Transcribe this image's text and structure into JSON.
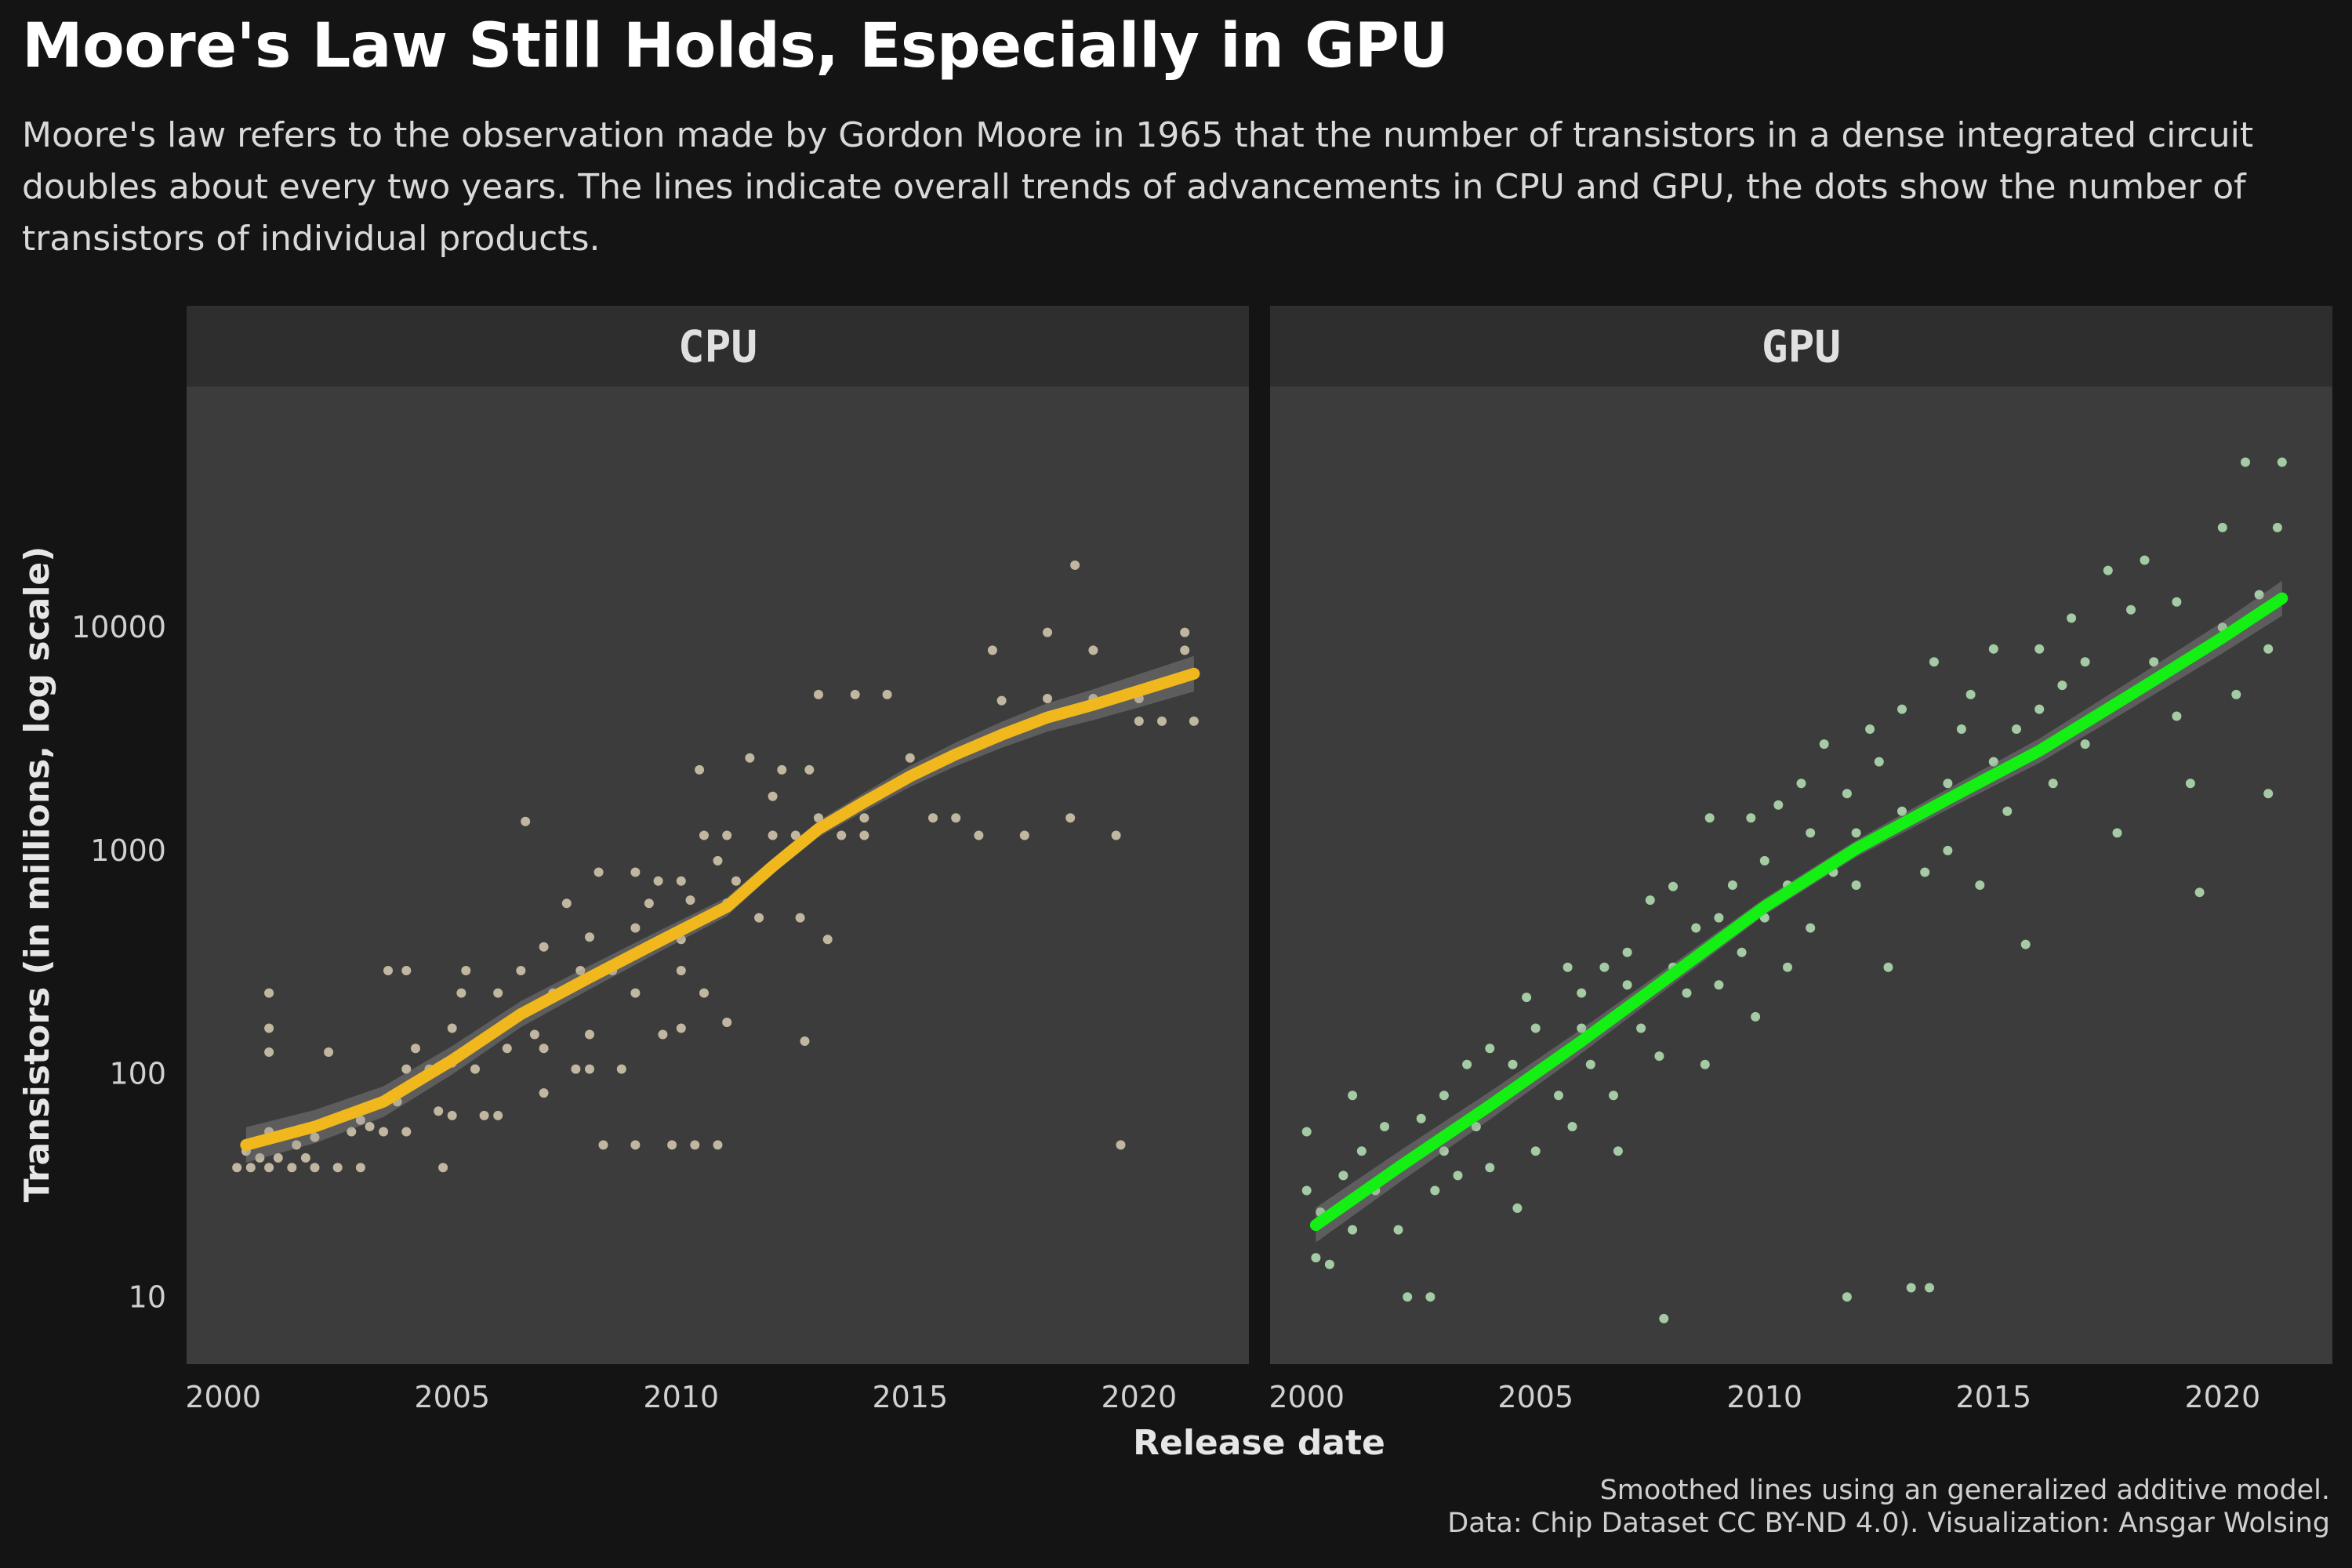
{
  "title": "Moore's Law Still Holds, Especially in GPU",
  "subtitle": "Moore's law refers to the observation made by Gordon Moore in 1965 that the number of transistors in a dense integrated circuit doubles about every two years. The lines indicate overall trends of advancements in CPU and GPU, the dots show the number of transistors of individual products.",
  "caption": {
    "line1": "Smoothed lines using an generalized additive model.",
    "line2": "Data: Chip Dataset CC BY-ND 4.0). Visualization: Ansgar Wolsing"
  },
  "colors": {
    "background": "#141414",
    "panel": "#3c3c3c",
    "strip": "#2e2e2e",
    "cpu_line": "#f0b81c",
    "cpu_points": "#d8cbb0",
    "gpu_line": "#14f014",
    "gpu_points": "#b6e4b6",
    "ribbon": "#9a9a9a"
  },
  "chart_data": {
    "type": "scatter",
    "xlabel": "Release date",
    "ylabel": "Transistors (in millions, log scale)",
    "y_scale": "log",
    "ylim": [
      5,
      120000
    ],
    "xlim": [
      1999.2,
      2022.4
    ],
    "x_ticks": [
      "2000",
      "2005",
      "2010",
      "2015",
      "2020"
    ],
    "y_ticks": [
      "10",
      "100",
      "1000",
      "10000"
    ],
    "grid": false,
    "panels": [
      {
        "name": "CPU",
        "trend": {
          "x": [
            2000.5,
            2002,
            2003.5,
            2005,
            2006.5,
            2008,
            2009.5,
            2011,
            2012,
            2013,
            2014,
            2015,
            2016,
            2017,
            2018,
            2019,
            2020,
            2021.2
          ],
          "y": [
            48,
            58,
            75,
            115,
            185,
            270,
            390,
            560,
            850,
            1250,
            1650,
            2150,
            2700,
            3300,
            3950,
            4500,
            5200,
            6200
          ]
        },
        "points": [
          [
            2000.3,
            38
          ],
          [
            2000.5,
            45
          ],
          [
            2000.6,
            38
          ],
          [
            2000.8,
            42
          ],
          [
            2001,
            55
          ],
          [
            2001,
            38
          ],
          [
            2001,
            230
          ],
          [
            2001,
            160
          ],
          [
            2001,
            125
          ],
          [
            2001.2,
            42
          ],
          [
            2001.5,
            38
          ],
          [
            2001.6,
            48
          ],
          [
            2001.8,
            42
          ],
          [
            2002,
            38
          ],
          [
            2002,
            52
          ],
          [
            2002.3,
            125
          ],
          [
            2002.5,
            38
          ],
          [
            2002.8,
            55
          ],
          [
            2003,
            62
          ],
          [
            2003,
            38
          ],
          [
            2003.2,
            58
          ],
          [
            2003.5,
            55
          ],
          [
            2003.6,
            290
          ],
          [
            2003.8,
            75
          ],
          [
            2004,
            105
          ],
          [
            2004,
            290
          ],
          [
            2004,
            55
          ],
          [
            2004.2,
            130
          ],
          [
            2004.5,
            105
          ],
          [
            2004.7,
            68
          ],
          [
            2004.8,
            38
          ],
          [
            2005,
            160
          ],
          [
            2005,
            112
          ],
          [
            2005,
            65
          ],
          [
            2005.2,
            230
          ],
          [
            2005.3,
            290
          ],
          [
            2005.5,
            105
          ],
          [
            2005.7,
            65
          ],
          [
            2005.8,
            150
          ],
          [
            2006,
            230
          ],
          [
            2006,
            65
          ],
          [
            2006.2,
            130
          ],
          [
            2006.5,
            290
          ],
          [
            2006.6,
            1350
          ],
          [
            2006.8,
            150
          ],
          [
            2007,
            370
          ],
          [
            2007,
            130
          ],
          [
            2007,
            82
          ],
          [
            2007.2,
            230
          ],
          [
            2007.5,
            580
          ],
          [
            2007.7,
            105
          ],
          [
            2007.8,
            290
          ],
          [
            2008,
            410
          ],
          [
            2008,
            150
          ],
          [
            2008,
            105
          ],
          [
            2008.2,
            800
          ],
          [
            2008.3,
            48
          ],
          [
            2008.5,
            290
          ],
          [
            2008.7,
            105
          ],
          [
            2009,
            800
          ],
          [
            2009,
            450
          ],
          [
            2009,
            230
          ],
          [
            2009,
            48
          ],
          [
            2009.3,
            580
          ],
          [
            2009.5,
            730
          ],
          [
            2009.6,
            150
          ],
          [
            2009.8,
            48
          ],
          [
            2010,
            730
          ],
          [
            2010,
            400
          ],
          [
            2010,
            290
          ],
          [
            2010,
            160
          ],
          [
            2010.2,
            600
          ],
          [
            2010.3,
            48
          ],
          [
            2010.4,
            2300
          ],
          [
            2010.5,
            1170
          ],
          [
            2010.5,
            230
          ],
          [
            2010.8,
            900
          ],
          [
            2010.8,
            48
          ],
          [
            2011,
            1170
          ],
          [
            2011,
            580
          ],
          [
            2011,
            170
          ],
          [
            2011.2,
            730
          ],
          [
            2011.5,
            2600
          ],
          [
            2011.7,
            500
          ],
          [
            2012,
            1170
          ],
          [
            2012,
            1750
          ],
          [
            2012.2,
            2300
          ],
          [
            2012.5,
            1170
          ],
          [
            2012.6,
            500
          ],
          [
            2012.7,
            140
          ],
          [
            2012.8,
            2300
          ],
          [
            2013,
            1400
          ],
          [
            2013,
            5000
          ],
          [
            2013.2,
            400
          ],
          [
            2013.5,
            1170
          ],
          [
            2013.8,
            5000
          ],
          [
            2014,
            1400
          ],
          [
            2014,
            1170
          ],
          [
            2014.5,
            5000
          ],
          [
            2015,
            2600
          ],
          [
            2015.5,
            1400
          ],
          [
            2016,
            1400
          ],
          [
            2016.5,
            1170
          ],
          [
            2016.8,
            7900
          ],
          [
            2017,
            4700
          ],
          [
            2017.5,
            1170
          ],
          [
            2018,
            9500
          ],
          [
            2018,
            4800
          ],
          [
            2018.5,
            1400
          ],
          [
            2018.6,
            19000
          ],
          [
            2019,
            7900
          ],
          [
            2019,
            4800
          ],
          [
            2019.5,
            1170
          ],
          [
            2019.6,
            48
          ],
          [
            2020,
            4800
          ],
          [
            2020,
            3800
          ],
          [
            2020.5,
            3800
          ],
          [
            2021,
            9500
          ],
          [
            2021,
            7900
          ],
          [
            2021.2,
            3800
          ]
        ]
      },
      {
        "name": "GPU",
        "trend": {
          "x": [
            2000.2,
            2002,
            2004,
            2006,
            2008,
            2010,
            2012,
            2014,
            2016,
            2018,
            2020,
            2021.3
          ],
          "y": [
            21,
            38,
            72,
            140,
            280,
            560,
            1020,
            1700,
            2800,
            5000,
            9000,
            13500
          ]
        },
        "points": [
          [
            2000,
            55
          ],
          [
            2000,
            30
          ],
          [
            2000.2,
            15
          ],
          [
            2000.3,
            24
          ],
          [
            2000.5,
            14
          ],
          [
            2000.8,
            35
          ],
          [
            2001,
            20
          ],
          [
            2001,
            80
          ],
          [
            2001.2,
            45
          ],
          [
            2001.5,
            30
          ],
          [
            2001.7,
            58
          ],
          [
            2002,
            38
          ],
          [
            2002,
            20
          ],
          [
            2002.2,
            10
          ],
          [
            2002.5,
            63
          ],
          [
            2002.7,
            10
          ],
          [
            2002.8,
            30
          ],
          [
            2003,
            45
          ],
          [
            2003,
            80
          ],
          [
            2003.3,
            35
          ],
          [
            2003.5,
            110
          ],
          [
            2003.7,
            58
          ],
          [
            2004,
            130
          ],
          [
            2004,
            38
          ],
          [
            2004.3,
            80
          ],
          [
            2004.5,
            110
          ],
          [
            2004.6,
            25
          ],
          [
            2004.8,
            220
          ],
          [
            2005,
            160
          ],
          [
            2005,
            45
          ],
          [
            2005.3,
            110
          ],
          [
            2005.5,
            80
          ],
          [
            2005.7,
            300
          ],
          [
            2005.8,
            58
          ],
          [
            2006,
            230
          ],
          [
            2006,
            160
          ],
          [
            2006.2,
            110
          ],
          [
            2006.5,
            300
          ],
          [
            2006.7,
            80
          ],
          [
            2006.8,
            45
          ],
          [
            2007,
            250
          ],
          [
            2007,
            350
          ],
          [
            2007.3,
            160
          ],
          [
            2007.5,
            600
          ],
          [
            2007.7,
            120
          ],
          [
            2007.8,
            8
          ],
          [
            2008,
            300
          ],
          [
            2008,
            690
          ],
          [
            2008.3,
            230
          ],
          [
            2008.5,
            450
          ],
          [
            2008.7,
            110
          ],
          [
            2008.8,
            1400
          ],
          [
            2009,
            500
          ],
          [
            2009,
            250
          ],
          [
            2009.3,
            700
          ],
          [
            2009.5,
            350
          ],
          [
            2009.7,
            1400
          ],
          [
            2009.8,
            180
          ],
          [
            2010,
            900
          ],
          [
            2010,
            500
          ],
          [
            2010.3,
            1600
          ],
          [
            2010.5,
            300
          ],
          [
            2010.5,
            700
          ],
          [
            2010.8,
            2000
          ],
          [
            2011,
            1200
          ],
          [
            2011,
            450
          ],
          [
            2011.3,
            3000
          ],
          [
            2011.5,
            800
          ],
          [
            2011.8,
            1800
          ],
          [
            2011.8,
            10
          ],
          [
            2012,
            1200
          ],
          [
            2012,
            700
          ],
          [
            2012.3,
            3500
          ],
          [
            2012.5,
            2500
          ],
          [
            2012.7,
            300
          ],
          [
            2013,
            1500
          ],
          [
            2013,
            4300
          ],
          [
            2013.2,
            11
          ],
          [
            2013.5,
            800
          ],
          [
            2013.6,
            11
          ],
          [
            2013.7,
            7000
          ],
          [
            2014,
            2000
          ],
          [
            2014,
            1000
          ],
          [
            2014.3,
            3500
          ],
          [
            2014.5,
            5000
          ],
          [
            2014.7,
            700
          ],
          [
            2015,
            2500
          ],
          [
            2015,
            8000
          ],
          [
            2015.3,
            1500
          ],
          [
            2015.5,
            3500
          ],
          [
            2015.7,
            380
          ],
          [
            2016,
            4300
          ],
          [
            2016,
            8000
          ],
          [
            2016.3,
            2000
          ],
          [
            2016.5,
            5500
          ],
          [
            2016.7,
            11000
          ],
          [
            2017,
            7000
          ],
          [
            2017,
            3000
          ],
          [
            2017.5,
            18000
          ],
          [
            2017.7,
            1200
          ],
          [
            2018,
            12000
          ],
          [
            2018,
            5000
          ],
          [
            2018.3,
            20000
          ],
          [
            2018.5,
            7000
          ],
          [
            2019,
            13000
          ],
          [
            2019,
            4000
          ],
          [
            2019.3,
            2000
          ],
          [
            2019.5,
            650
          ],
          [
            2020,
            10000
          ],
          [
            2020,
            28000
          ],
          [
            2020.3,
            5000
          ],
          [
            2020.5,
            55000
          ],
          [
            2020.8,
            14000
          ],
          [
            2021,
            8000
          ],
          [
            2021,
            1800
          ],
          [
            2021.2,
            28000
          ],
          [
            2021.3,
            55000
          ]
        ]
      }
    ]
  }
}
